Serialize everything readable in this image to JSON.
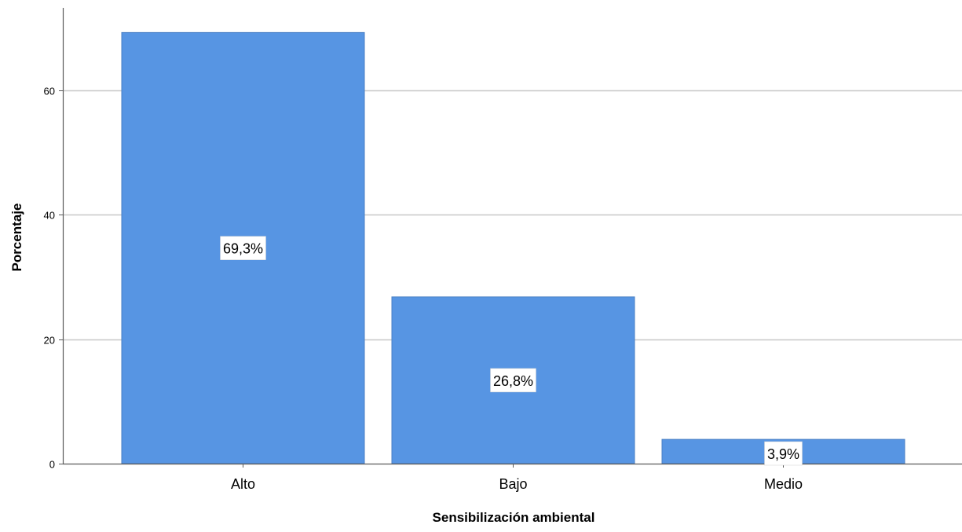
{
  "chart_data": {
    "type": "bar",
    "title": "",
    "xlabel": "Sensibilización ambiental",
    "ylabel": "Porcentaje",
    "categories": [
      "Alto",
      "Bajo",
      "Medio"
    ],
    "values": [
      69.3,
      26.8,
      3.9
    ],
    "data_labels": [
      "69,3%",
      "26,8%",
      "3,9%"
    ],
    "yticks": [
      0,
      20,
      40,
      60
    ],
    "ytick_labels": [
      "0",
      "20",
      "40",
      "60"
    ],
    "ylim": [
      0,
      73
    ],
    "grid": true,
    "legend": "none",
    "colors": {
      "bar": "#5795e3",
      "bar_stroke": "#4a7fc4",
      "grid": "#c8c8c8",
      "axis": "#5a5a5a",
      "text": "#000000",
      "label_bg": "#ffffff"
    }
  }
}
